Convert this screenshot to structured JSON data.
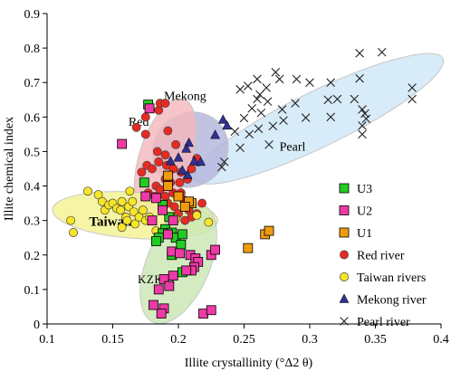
{
  "chart_data": {
    "type": "scatter",
    "xlabel": "Illite crystallinity (°Δ2 θ)",
    "ylabel": "Illite chemical index",
    "xlim": [
      0.1,
      0.4
    ],
    "ylim": [
      0,
      0.9
    ],
    "x_ticks": [
      "0.1",
      "0.15",
      "0.2",
      "0.25",
      "0.3",
      "0.35",
      "0.4"
    ],
    "y_ticks": [
      "0",
      "0.1",
      "0.2",
      "0.3",
      "0.4",
      "0.5",
      "0.6",
      "0.7",
      "0.8",
      "0.9"
    ],
    "grid": false,
    "legend_position": "lower-right",
    "region_labels": {
      "red": "Red",
      "mekong": "Mekong",
      "pearl": "Pearl",
      "taiwan": "Taiwan",
      "kzk01": "KZK01"
    },
    "regions": [
      {
        "key": "pearl",
        "cx": 0.307,
        "cy": 0.595,
        "rx": 0.105,
        "ry": 0.08,
        "angle_deg": -26,
        "fill": "#cfe6f6",
        "stroke": "#c7c7c7"
      },
      {
        "key": "mekong",
        "cx": 0.209,
        "cy": 0.505,
        "rx": 0.03,
        "ry": 0.105,
        "angle_deg": -42,
        "fill": "#b4b4dc",
        "stroke": "#c7c7c7"
      },
      {
        "key": "red",
        "cx": 0.19,
        "cy": 0.48,
        "rx": 0.02,
        "ry": 0.18,
        "angle_deg": 17,
        "fill": "#f3b8bd",
        "stroke": "#c7c7c7"
      },
      {
        "key": "taiwan",
        "cx": 0.167,
        "cy": 0.315,
        "rx": 0.063,
        "ry": 0.067,
        "angle_deg": 4,
        "fill": "#f4f291",
        "stroke": "#c7c7c7"
      },
      {
        "key": "kzk01",
        "cx": 0.2,
        "cy": 0.175,
        "rx": 0.024,
        "ry": 0.185,
        "angle_deg": 23,
        "fill": "#cbe7b4",
        "stroke": "#c7c7c7"
      }
    ],
    "series": [
      {
        "name": "U3",
        "marker": "square",
        "color": "#22cc22",
        "points": [
          [
            0.177,
            0.636
          ],
          [
            0.174,
            0.41
          ],
          [
            0.188,
            0.345
          ],
          [
            0.193,
            0.31
          ],
          [
            0.19,
            0.275
          ],
          [
            0.188,
            0.263
          ],
          [
            0.195,
            0.265
          ],
          [
            0.185,
            0.25
          ],
          [
            0.183,
            0.24
          ],
          [
            0.198,
            0.25
          ],
          [
            0.203,
            0.26
          ],
          [
            0.202,
            0.23
          ],
          [
            0.195,
            0.2
          ],
          [
            0.203,
            0.15
          ]
        ]
      },
      {
        "name": "U2",
        "marker": "square",
        "color": "#ee3aa6",
        "points": [
          [
            0.178,
            0.625
          ],
          [
            0.157,
            0.522
          ],
          [
            0.175,
            0.37
          ],
          [
            0.183,
            0.365
          ],
          [
            0.188,
            0.33
          ],
          [
            0.18,
            0.3
          ],
          [
            0.196,
            0.3
          ],
          [
            0.192,
            0.26
          ],
          [
            0.195,
            0.21
          ],
          [
            0.201,
            0.205
          ],
          [
            0.209,
            0.2
          ],
          [
            0.213,
            0.19
          ],
          [
            0.215,
            0.18
          ],
          [
            0.212,
            0.165
          ],
          [
            0.21,
            0.155
          ],
          [
            0.206,
            0.155
          ],
          [
            0.196,
            0.14
          ],
          [
            0.189,
            0.13
          ],
          [
            0.193,
            0.11
          ],
          [
            0.185,
            0.1
          ],
          [
            0.189,
            0.045
          ],
          [
            0.187,
            0.03
          ],
          [
            0.181,
            0.055
          ],
          [
            0.225,
            0.2
          ],
          [
            0.228,
            0.215
          ],
          [
            0.219,
            0.03
          ],
          [
            0.225,
            0.04
          ]
        ]
      },
      {
        "name": "U1",
        "marker": "square",
        "color": "#ef9b0f",
        "points": [
          [
            0.192,
            0.43
          ],
          [
            0.192,
            0.4
          ],
          [
            0.2,
            0.37
          ],
          [
            0.21,
            0.35
          ],
          [
            0.208,
            0.355
          ],
          [
            0.205,
            0.34
          ],
          [
            0.253,
            0.22
          ],
          [
            0.266,
            0.26
          ],
          [
            0.269,
            0.27
          ]
        ]
      },
      {
        "name": "Red river",
        "marker": "circle",
        "color": "#e82a22",
        "points": [
          [
            0.168,
            0.57
          ],
          [
            0.175,
            0.6
          ],
          [
            0.185,
            0.62
          ],
          [
            0.186,
            0.64
          ],
          [
            0.19,
            0.64
          ],
          [
            0.175,
            0.55
          ],
          [
            0.192,
            0.56
          ],
          [
            0.184,
            0.5
          ],
          [
            0.19,
            0.49
          ],
          [
            0.198,
            0.52
          ],
          [
            0.185,
            0.47
          ],
          [
            0.176,
            0.46
          ],
          [
            0.172,
            0.44
          ],
          [
            0.18,
            0.45
          ],
          [
            0.191,
            0.46
          ],
          [
            0.196,
            0.45
          ],
          [
            0.202,
            0.44
          ],
          [
            0.21,
            0.45
          ],
          [
            0.215,
            0.47
          ],
          [
            0.214,
            0.48
          ],
          [
            0.19,
            0.42
          ],
          [
            0.183,
            0.4
          ],
          [
            0.186,
            0.39
          ],
          [
            0.194,
            0.41
          ],
          [
            0.201,
            0.41
          ],
          [
            0.207,
            0.42
          ],
          [
            0.177,
            0.38
          ],
          [
            0.182,
            0.37
          ],
          [
            0.19,
            0.37
          ],
          [
            0.196,
            0.38
          ],
          [
            0.202,
            0.38
          ],
          [
            0.204,
            0.36
          ],
          [
            0.192,
            0.35
          ],
          [
            0.197,
            0.34
          ],
          [
            0.208,
            0.33
          ],
          [
            0.214,
            0.32
          ],
          [
            0.2,
            0.32
          ],
          [
            0.196,
            0.31
          ],
          [
            0.21,
            0.31
          ],
          [
            0.205,
            0.3
          ],
          [
            0.218,
            0.35
          ]
        ]
      },
      {
        "name": "Taiwan rivers",
        "marker": "circle",
        "color": "#f6e624",
        "points": [
          [
            0.118,
            0.3
          ],
          [
            0.12,
            0.265
          ],
          [
            0.131,
            0.385
          ],
          [
            0.139,
            0.375
          ],
          [
            0.142,
            0.355
          ],
          [
            0.144,
            0.33
          ],
          [
            0.147,
            0.345
          ],
          [
            0.15,
            0.35
          ],
          [
            0.153,
            0.335
          ],
          [
            0.156,
            0.33
          ],
          [
            0.157,
            0.355
          ],
          [
            0.16,
            0.31
          ],
          [
            0.162,
            0.34
          ],
          [
            0.163,
            0.385
          ],
          [
            0.165,
            0.355
          ],
          [
            0.166,
            0.325
          ],
          [
            0.161,
            0.3
          ],
          [
            0.167,
            0.29
          ],
          [
            0.17,
            0.31
          ],
          [
            0.173,
            0.33
          ],
          [
            0.175,
            0.3
          ],
          [
            0.178,
            0.31
          ],
          [
            0.157,
            0.28
          ],
          [
            0.183,
            0.27
          ],
          [
            0.198,
            0.305
          ],
          [
            0.214,
            0.315
          ],
          [
            0.223,
            0.295
          ]
        ]
      },
      {
        "name": "Mekong river",
        "marker": "triangle",
        "color": "#2e3192",
        "points": [
          [
            0.234,
            0.592
          ],
          [
            0.237,
            0.575
          ],
          [
            0.228,
            0.548
          ],
          [
            0.208,
            0.525
          ],
          [
            0.206,
            0.508
          ],
          [
            0.2,
            0.482
          ],
          [
            0.194,
            0.472
          ],
          [
            0.212,
            0.472
          ],
          [
            0.217,
            0.47
          ],
          [
            0.203,
            0.445
          ],
          [
            0.207,
            0.432
          ]
        ]
      },
      {
        "name": "Pearl river",
        "marker": "cross",
        "color": "#222222",
        "points": [
          [
            0.355,
            0.788
          ],
          [
            0.338,
            0.785
          ],
          [
            0.274,
            0.73
          ],
          [
            0.29,
            0.71
          ],
          [
            0.26,
            0.71
          ],
          [
            0.277,
            0.71
          ],
          [
            0.338,
            0.712
          ],
          [
            0.3,
            0.7
          ],
          [
            0.316,
            0.7
          ],
          [
            0.253,
            0.69
          ],
          [
            0.267,
            0.685
          ],
          [
            0.247,
            0.68
          ],
          [
            0.378,
            0.685
          ],
          [
            0.262,
            0.665
          ],
          [
            0.26,
            0.652
          ],
          [
            0.268,
            0.645
          ],
          [
            0.289,
            0.64
          ],
          [
            0.314,
            0.65
          ],
          [
            0.321,
            0.652
          ],
          [
            0.334,
            0.652
          ],
          [
            0.378,
            0.652
          ],
          [
            0.256,
            0.625
          ],
          [
            0.263,
            0.612
          ],
          [
            0.279,
            0.622
          ],
          [
            0.34,
            0.622
          ],
          [
            0.25,
            0.597
          ],
          [
            0.297,
            0.598
          ],
          [
            0.316,
            0.6
          ],
          [
            0.342,
            0.61
          ],
          [
            0.343,
            0.595
          ],
          [
            0.28,
            0.59
          ],
          [
            0.272,
            0.574
          ],
          [
            0.34,
            0.575
          ],
          [
            0.261,
            0.566
          ],
          [
            0.243,
            0.558
          ],
          [
            0.254,
            0.55
          ],
          [
            0.34,
            0.55
          ],
          [
            0.269,
            0.52
          ],
          [
            0.247,
            0.511
          ],
          [
            0.235,
            0.47
          ],
          [
            0.233,
            0.455
          ]
        ]
      }
    ]
  }
}
